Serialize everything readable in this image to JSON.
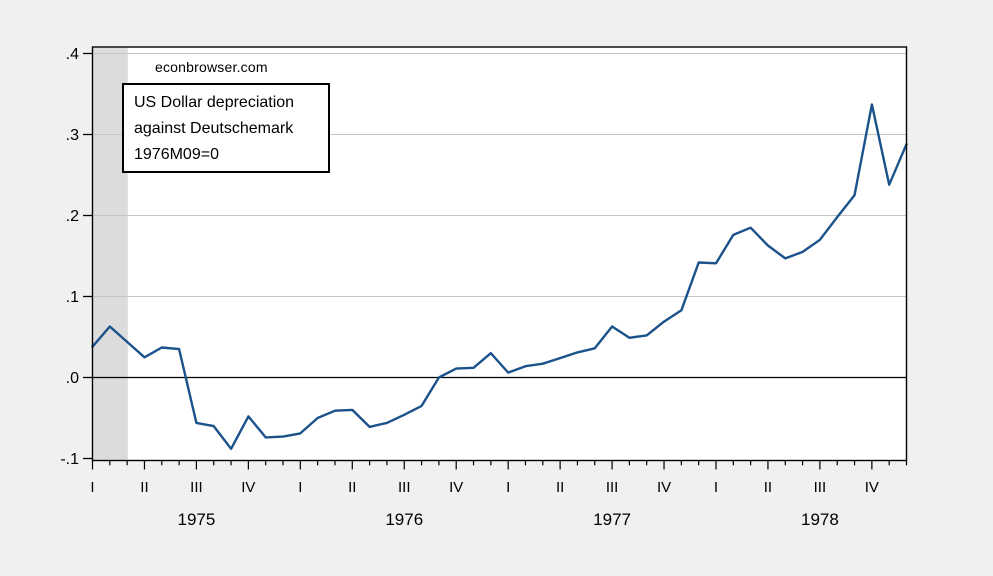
{
  "watermark": {
    "text": "econbrowser.com"
  },
  "annotation_box": {
    "lines": [
      "US Dollar depreciation",
      "against Deutschemark",
      "1976M09=0"
    ]
  },
  "chart_data": {
    "type": "line",
    "title": "US Dollar depreciation against Deutschemark, 1976M09=0",
    "frequency": "monthly",
    "legend": "none",
    "grid": "horizontal",
    "x": [
      "1975M01",
      "1975M02",
      "1975M03",
      "1975M04",
      "1975M05",
      "1975M06",
      "1975M07",
      "1975M08",
      "1975M09",
      "1975M10",
      "1975M11",
      "1975M12",
      "1976M01",
      "1976M02",
      "1976M03",
      "1976M04",
      "1976M05",
      "1976M06",
      "1976M07",
      "1976M08",
      "1976M09",
      "1976M10",
      "1976M11",
      "1976M12",
      "1977M01",
      "1977M02",
      "1977M03",
      "1977M04",
      "1977M05",
      "1977M06",
      "1977M07",
      "1977M08",
      "1977M09",
      "1977M10",
      "1977M11",
      "1977M12",
      "1978M01",
      "1978M02",
      "1978M03",
      "1978M04",
      "1978M05",
      "1978M06",
      "1978M07",
      "1978M08",
      "1978M09",
      "1978M10",
      "1978M11",
      "1978M12"
    ],
    "values": [
      0.038,
      0.063,
      0.044,
      0.025,
      0.037,
      0.035,
      -0.056,
      -0.06,
      -0.088,
      -0.048,
      -0.074,
      -0.073,
      -0.069,
      -0.05,
      -0.041,
      -0.04,
      -0.061,
      -0.056,
      -0.046,
      -0.035,
      0.0,
      0.011,
      0.012,
      0.03,
      0.006,
      0.014,
      0.017,
      0.024,
      0.031,
      0.036,
      0.063,
      0.049,
      0.052,
      0.069,
      0.083,
      0.142,
      0.141,
      0.176,
      0.185,
      0.163,
      0.147,
      0.155,
      0.17,
      0.198,
      0.225,
      0.337,
      0.238,
      0.288
    ],
    "y_axis": {
      "tick_labels": [
        ".4",
        ".3",
        ".2",
        ".1",
        ".0",
        "-.1"
      ],
      "tick_values": [
        0.4,
        0.3,
        0.2,
        0.1,
        0.0,
        -0.1
      ],
      "ylim": [
        -0.102,
        0.408
      ],
      "zero_line": true
    },
    "x_axis": {
      "quarter_labels": [
        "I",
        "II",
        "III",
        "IV"
      ],
      "year_labels": [
        "1975",
        "1976",
        "1977",
        "1978"
      ],
      "minor_ticks": "monthly",
      "major_ticks": "quarterly"
    },
    "recession_band": {
      "start": "1975M01",
      "end": "1975M03"
    },
    "colors": {
      "line": "#1b528b",
      "band": "#dcdcdc",
      "grid": "#c5c5c5",
      "axis": "#000000",
      "plot_bg": "#ffffff",
      "outer_bg": "#f0f0f0"
    }
  }
}
